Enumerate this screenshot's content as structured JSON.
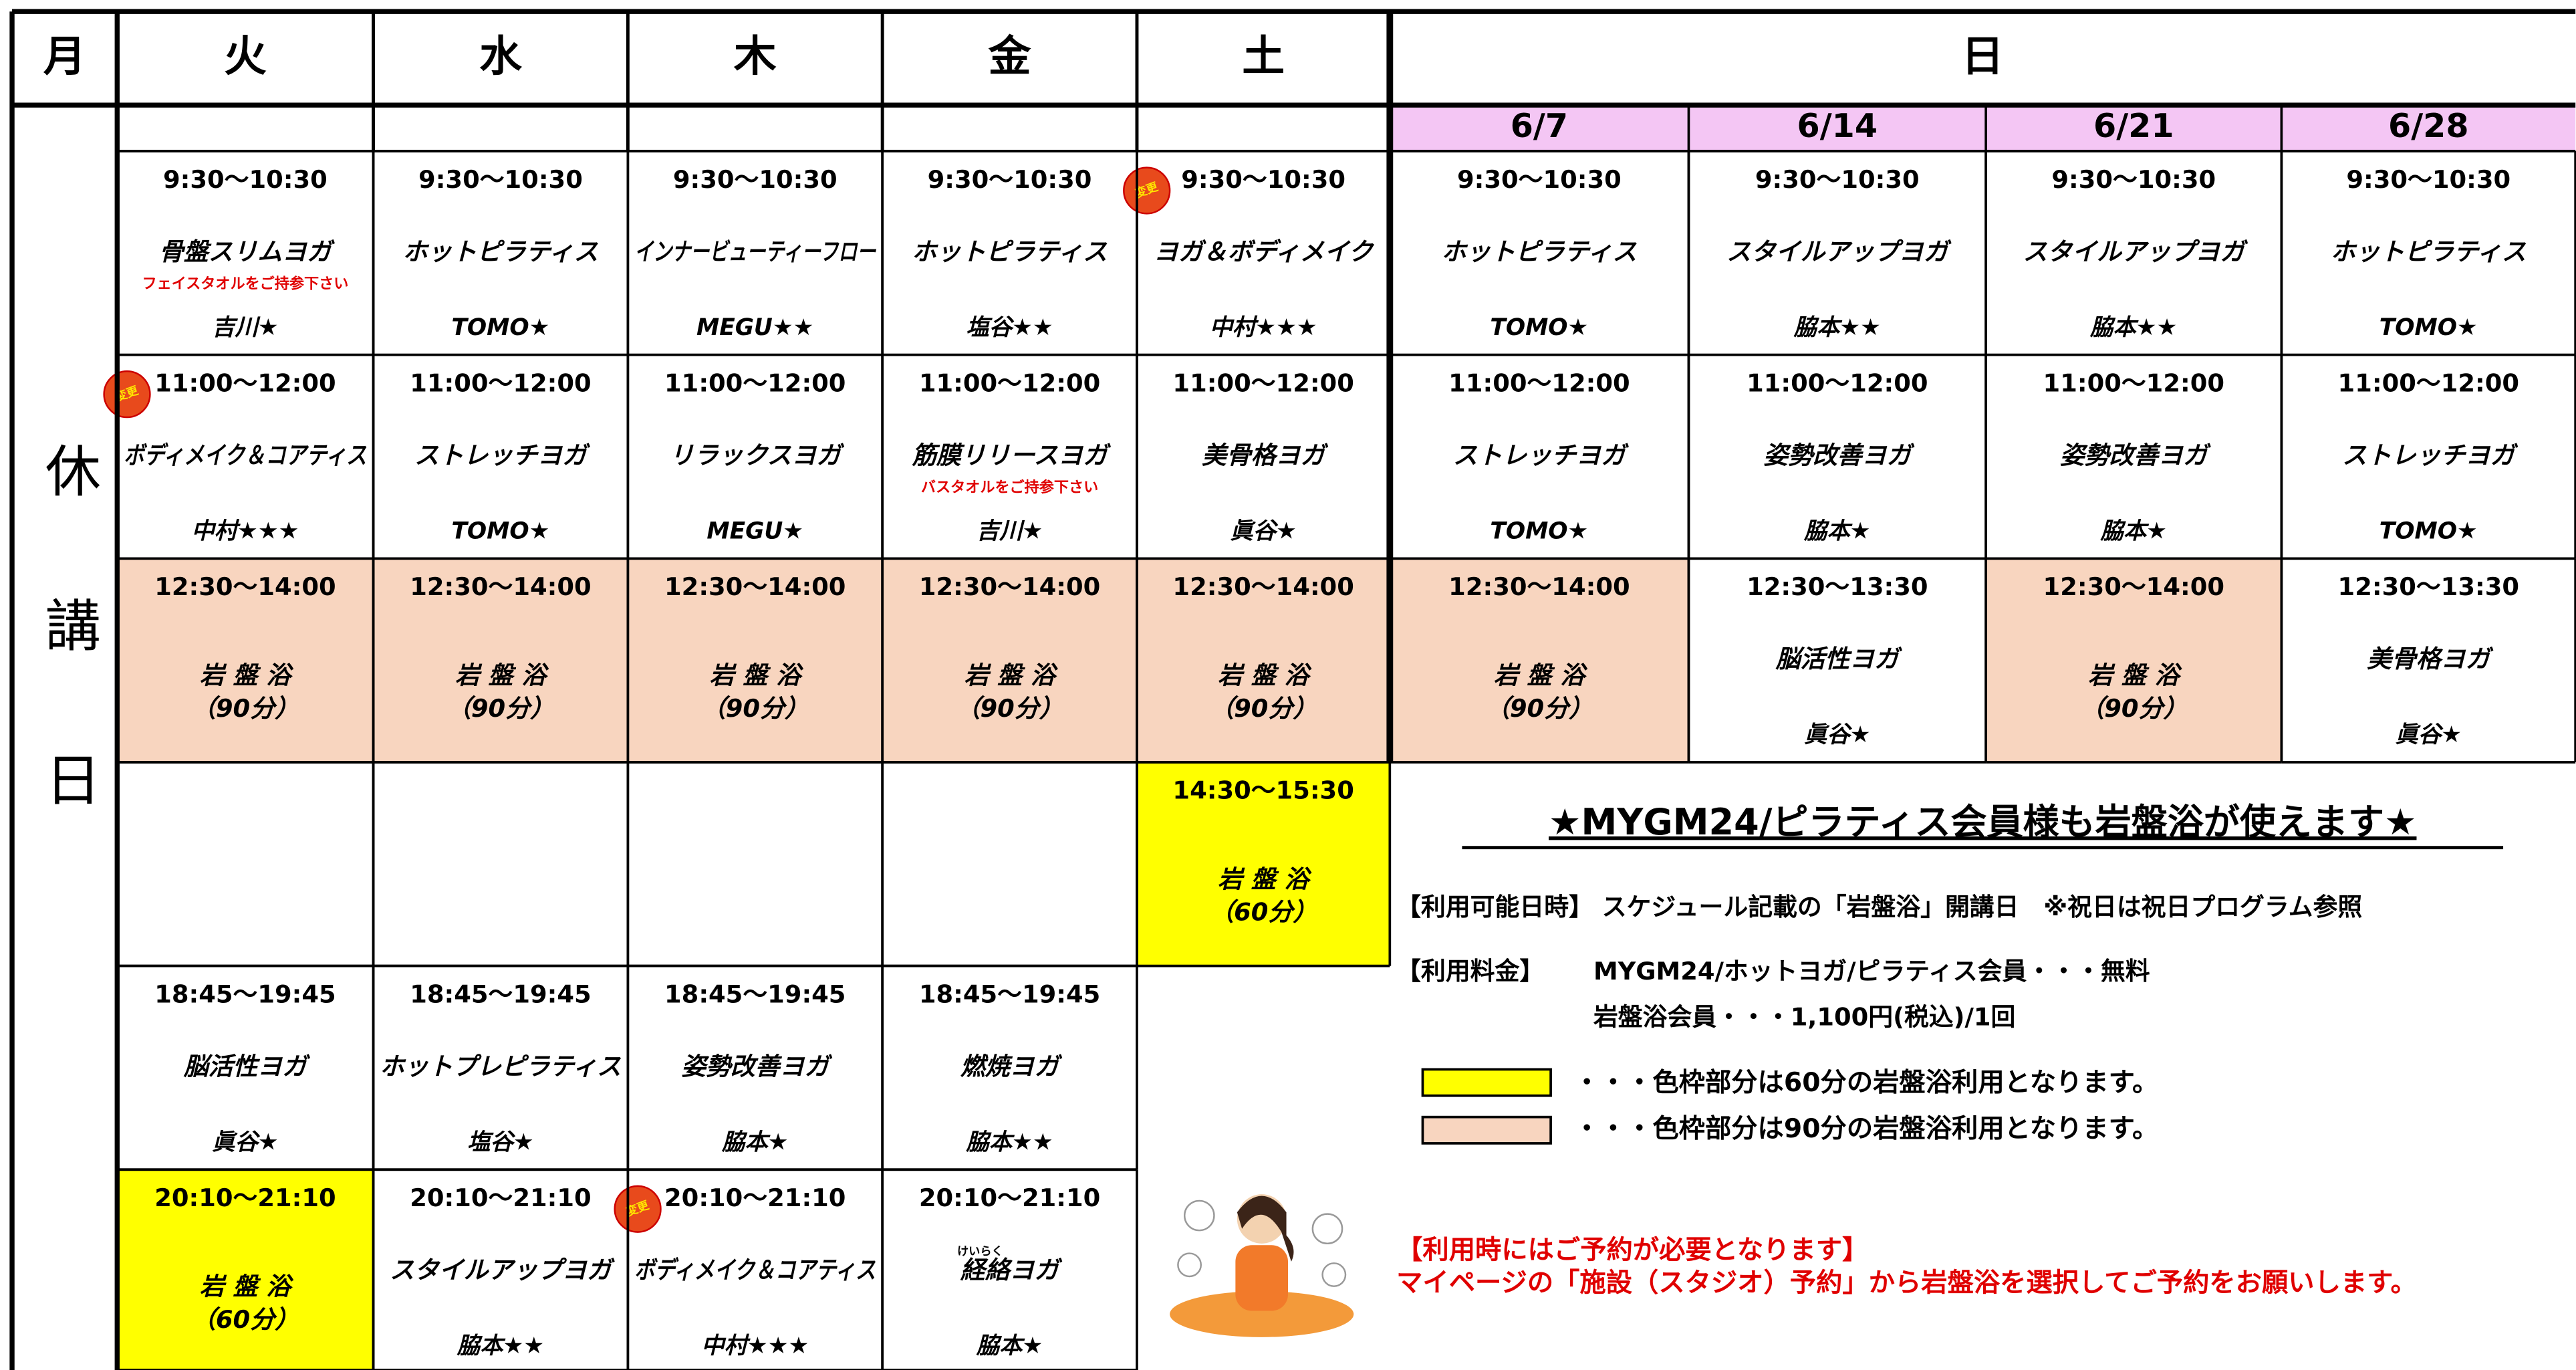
{
  "header": {
    "days": [
      "月",
      "火",
      "水",
      "木",
      "金",
      "土",
      "日"
    ],
    "sunday_dates": [
      "6/7",
      "6/14",
      "6/21",
      "6/28"
    ],
    "closed": "休講日"
  },
  "rows": [
    [
      {
        "time": "9:30〜10:30",
        "name": "骨盤スリムヨガ",
        "note": "フェイスタオルをご持参下さい",
        "teacher": "吉川★"
      },
      {
        "time": "9:30〜10:30",
        "name": "ホットピラティス",
        "teacher": "TOMO★"
      },
      {
        "time": "9:30〜10:30",
        "name": "インナービューティーフロー",
        "teacher": "MEGU★★"
      },
      {
        "time": "9:30〜10:30",
        "name": "ホットピラティス",
        "teacher": "塩谷★★"
      },
      {
        "badge": "変更",
        "time": "9:30〜10:30",
        "name": "ヨガ＆ボディメイク",
        "teacher": "中村★★★"
      },
      {
        "time": "9:30〜10:30",
        "name": "ホットピラティス",
        "teacher": "TOMO★"
      },
      {
        "time": "9:30〜10:30",
        "name": "スタイルアップヨガ",
        "teacher": "脇本★★"
      },
      {
        "time": "9:30〜10:30",
        "name": "スタイルアップヨガ",
        "teacher": "脇本★★"
      },
      {
        "time": "9:30〜10:30",
        "name": "ホットピラティス",
        "teacher": "TOMO★"
      }
    ],
    [
      {
        "badge": "変更",
        "time": "11:00〜12:00",
        "name": "ボディメイク＆コアティス",
        "teacher": "中村★★★"
      },
      {
        "time": "11:00〜12:00",
        "name": "ストレッチヨガ",
        "teacher": "TOMO★"
      },
      {
        "time": "11:00〜12:00",
        "name": "リラックスヨガ",
        "teacher": "MEGU★"
      },
      {
        "time": "11:00〜12:00",
        "name": "筋膜リリースヨガ",
        "note": "バスタオルをご持参下さい",
        "teacher": "吉川★"
      },
      {
        "time": "11:00〜12:00",
        "name": "美骨格ヨガ",
        "teacher": "眞谷★"
      },
      {
        "time": "11:00〜12:00",
        "name": "ストレッチヨガ",
        "teacher": "TOMO★"
      },
      {
        "time": "11:00〜12:00",
        "name": "姿勢改善ヨガ",
        "teacher": "脇本★"
      },
      {
        "time": "11:00〜12:00",
        "name": "姿勢改善ヨガ",
        "teacher": "脇本★"
      },
      {
        "time": "11:00〜12:00",
        "name": "ストレッチヨガ",
        "teacher": "TOMO★"
      }
    ],
    [
      {
        "time": "12:30〜14:00",
        "name": "岩 盤 浴",
        "duration": "（90分）",
        "color": "#f8d5bf"
      },
      {
        "time": "12:30〜14:00",
        "name": "岩 盤 浴",
        "duration": "（90分）",
        "color": "#f8d5bf"
      },
      {
        "time": "12:30〜14:00",
        "name": "岩 盤 浴",
        "duration": "（90分）",
        "color": "#f8d5bf"
      },
      {
        "time": "12:30〜14:00",
        "name": "岩 盤 浴",
        "duration": "（90分）",
        "color": "#f8d5bf"
      },
      {
        "time": "12:30〜14:00",
        "name": "岩 盤 浴",
        "duration": "（90分）",
        "color": "#f8d5bf"
      },
      {
        "time": "12:30〜14:00",
        "name": "岩 盤 浴",
        "duration": "（90分）",
        "color": "#f8d5bf"
      },
      {
        "time": "12:30〜13:30",
        "name": "脳活性ヨガ",
        "teacher": "眞谷★"
      },
      {
        "time": "12:30〜14:00",
        "name": "岩 盤 浴",
        "duration": "（90分）",
        "color": "#f8d5bf"
      },
      {
        "time": "12:30〜13:30",
        "name": "美骨格ヨガ",
        "teacher": "眞谷★"
      }
    ],
    [
      null,
      null,
      null,
      null,
      {
        "time": "14:30〜15:30",
        "name": "岩 盤 浴",
        "duration": "（60分）",
        "color": "#ffff00"
      }
    ],
    [
      {
        "time": "18:45〜19:45",
        "name": "脳活性ヨガ",
        "teacher": "眞谷★"
      },
      {
        "time": "18:45〜19:45",
        "name": "ホットプレピラティス",
        "teacher": "塩谷★"
      },
      {
        "time": "18:45〜19:45",
        "name": "姿勢改善ヨガ",
        "teacher": "脇本★"
      },
      {
        "time": "18:45〜19:45",
        "name": "燃焼ヨガ",
        "teacher": "脇本★★"
      }
    ],
    [
      {
        "time": "20:10〜21:10",
        "name": "岩 盤 浴",
        "duration": "（60分）",
        "color": "#ffff00"
      },
      {
        "time": "20:10〜21:10",
        "name": "スタイルアップヨガ",
        "teacher": "脇本★★"
      },
      {
        "badge": "変更",
        "time": "20:10〜21:10",
        "name": "ボディメイク＆コアティス",
        "teacher": "中村★★★"
      },
      {
        "time": "20:10〜21:10",
        "ruby": "けいらく",
        "name": "経絡ヨガ",
        "teacher": "脇本★"
      }
    ]
  ],
  "notice": {
    "title": "★MYGM24/ピラティス会員様も岩盤浴が使えます★",
    "availability": "【利用可能日時】 スケジュール記載の「岩盤浴」開講日　※祝日は祝日プログラム参照",
    "fee_label": "【利用料金】",
    "fees": [
      "MYGM24/ホットヨガ/ピラティス会員・・・無料",
      "岩盤浴会員・・・1,100円(税込)/1回"
    ],
    "legend": [
      {
        "color": "#ffff00",
        "text": "・・・色枠部分は60分の岩盤浴利用となります。"
      },
      {
        "color": "#f8d5bf",
        "text": "・・・色枠部分は90分の岩盤浴利用となります。"
      }
    ],
    "reservation": [
      "【利用時にはご予約が必要となります】",
      "マイページの「施設（スタジオ）予約」から岩盤浴を選択してご予約をお願いします。"
    ]
  }
}
